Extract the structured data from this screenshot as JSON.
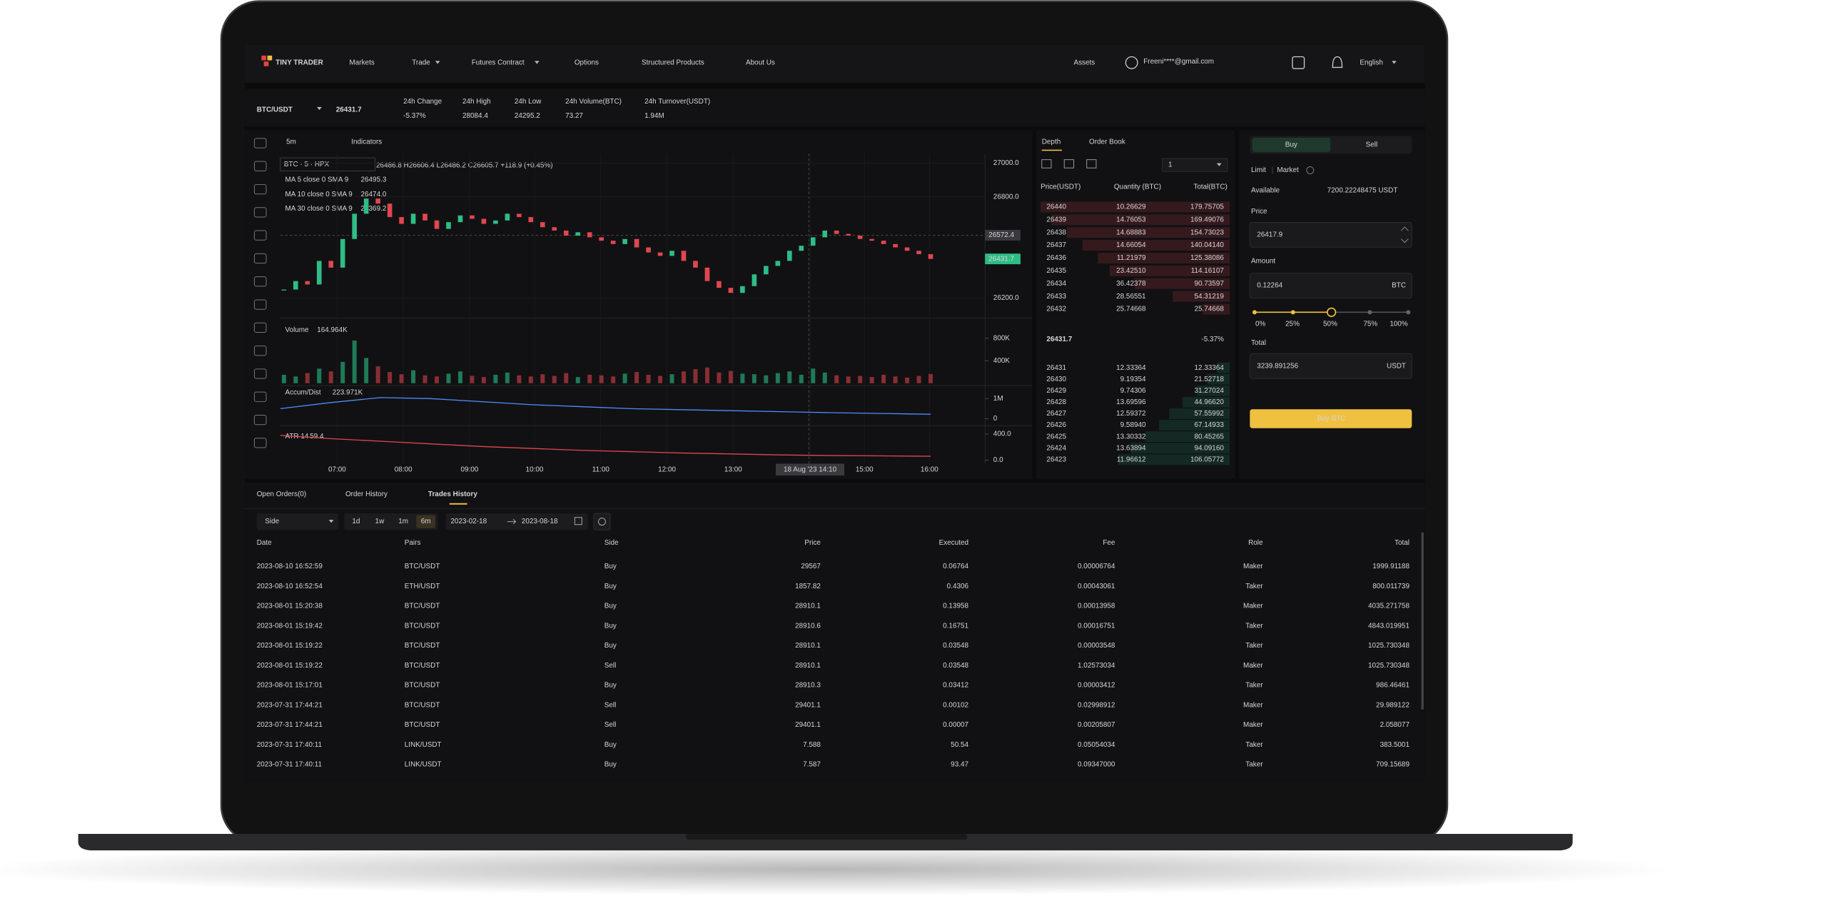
{
  "nav": {
    "logo": "TINY TRADER",
    "items": [
      "Markets",
      "Trade",
      "Futures Contract",
      "Options",
      "Structured Products",
      "About Us"
    ],
    "assets": "Assets",
    "email": "Freeni****@gmail.com",
    "language": "English"
  },
  "ticker": {
    "pair": "BTC/USDT",
    "price": "26431.7",
    "stats": [
      {
        "label": "24h Change",
        "value": "-5.37%"
      },
      {
        "label": "24h High",
        "value": "28084.4"
      },
      {
        "label": "24h Low",
        "value": "24295.2"
      },
      {
        "label": "24h Volume(BTC)",
        "value": "73.27"
      },
      {
        "label": "24h Turnover(USDT)",
        "value": "1.94M"
      }
    ]
  },
  "chart": {
    "interval": "5m",
    "indicators": "Indicators",
    "symbol": "BTC · 5 · HPX",
    "ohlc": "26486.8 H26606.4 L26486.2 C26605.7 +118.9 (+0.45%)",
    "ma": [
      {
        "label": "MA 5 close 0 SMA 9",
        "value": "26495.3"
      },
      {
        "label": "MA 10 close 0 SMA 9",
        "value": "26474.0"
      },
      {
        "label": "MA 30 close 0 SMA 9",
        "value": "26369.2"
      }
    ],
    "ylim": [
      26108,
      27035
    ],
    "yticks": [
      {
        "value": 27000,
        "label": "27000.0"
      },
      {
        "value": 26800,
        "label": "26800.0"
      },
      {
        "value": 26200,
        "label": "26200.0"
      }
    ],
    "markers": [
      {
        "value": 26572.4,
        "label": "26572.4"
      },
      {
        "value": 26431.7,
        "label": "26431.7"
      }
    ],
    "closes": [
      26250,
      26300,
      26280,
      26420,
      26380,
      26550,
      26700,
      26790,
      26760,
      26680,
      26640,
      26700,
      26660,
      26610,
      26650,
      26690,
      26670,
      26640,
      26660,
      26700,
      26680,
      26650,
      26620,
      26600,
      26570,
      26590,
      26560,
      26540,
      26520,
      26550,
      26500,
      26470,
      26450,
      26480,
      26420,
      26380,
      26300,
      26260,
      26230,
      26270,
      26340,
      26390,
      26420,
      26480,
      26510,
      26560,
      26600,
      26580,
      26570,
      26550,
      26540,
      26520,
      26500,
      26480,
      26460,
      26431.7
    ],
    "volume": {
      "label": "Volume",
      "value": "164.964K",
      "ylim": [
        0,
        1095000
      ],
      "yticks": [
        {
          "value": 800000,
          "label": "800K"
        },
        {
          "value": 400000,
          "label": "400K"
        }
      ],
      "values": [
        150000,
        120000,
        180000,
        260000,
        210000,
        380000,
        760000,
        450000,
        300000,
        200000,
        160000,
        230000,
        140000,
        120000,
        170000,
        210000,
        130000,
        110000,
        150000,
        190000,
        140000,
        120000,
        160000,
        130000,
        180000,
        110000,
        150000,
        140000,
        120000,
        170000,
        200000,
        150000,
        130000,
        160000,
        210000,
        250000,
        280000,
        190000,
        220000,
        170000,
        160000,
        140000,
        180000,
        210000,
        150000,
        260000,
        190000,
        140000,
        120000,
        130000,
        110000,
        150000,
        120000,
        100000,
        130000,
        164964
      ]
    },
    "accum": {
      "label": "Accum/Dist",
      "value": "223.971K",
      "ylim": [
        -235000,
        1529000
      ],
      "yticks": [
        {
          "value": 1000000,
          "label": "1M"
        },
        0
      ],
      "values": [
        500000,
        800000,
        1050000,
        1000000,
        850000,
        700000,
        600000,
        500000,
        450000,
        400000,
        350000,
        300000,
        260000,
        223971
      ]
    },
    "atr": {
      "label": "ATR 14",
      "value": "59.4",
      "ylim": [
        -54.5,
        490.9
      ],
      "yticks": [
        {
          "value": 400,
          "label": "400.0"
        },
        {
          "value": 0,
          "label": "0.0"
        }
      ],
      "values": [
        380,
        330,
        290,
        250,
        210,
        180,
        150,
        130,
        110,
        95,
        80,
        70,
        65,
        59.4
      ]
    },
    "times": [
      "07:00",
      "08:00",
      "09:00",
      "10:00",
      "11:00",
      "12:00",
      "13:00",
      "18 Aug '23 14:10",
      "15:00",
      "16:00"
    ]
  },
  "orderbook": {
    "tabs": [
      "Depth",
      "Order Book"
    ],
    "precision": "1",
    "columns": [
      "Price(USDT)",
      "Quantity (BTC)",
      "Total(BTC)"
    ],
    "asks": [
      [
        "26440",
        "10.26629",
        "179.75705"
      ],
      [
        "26439",
        "14.76053",
        "169.49076"
      ],
      [
        "26438",
        "14.68883",
        "154.73023"
      ],
      [
        "26437",
        "14.66054",
        "140.04140"
      ],
      [
        "26436",
        "11.21979",
        "125.38086"
      ],
      [
        "26435",
        "23.42510",
        "114.16107"
      ],
      [
        "26434",
        "36.42378",
        "90.73597"
      ],
      [
        "26433",
        "28.56551",
        "54.31219"
      ],
      [
        "26432",
        "25.74668",
        "25.74668"
      ]
    ],
    "mid_price": "26431.7",
    "mid_change": "-5.37%",
    "bids": [
      [
        "26431",
        "12.33364",
        "12.33364"
      ],
      [
        "26430",
        "9.19354",
        "21.52718"
      ],
      [
        "26429",
        "9.74306",
        "31.27024"
      ],
      [
        "26428",
        "13.69596",
        "44.96620"
      ],
      [
        "26427",
        "12.59372",
        "57.55992"
      ],
      [
        "26426",
        "9.58940",
        "67.14933"
      ],
      [
        "26425",
        "13.30332",
        "80.45265"
      ],
      [
        "26424",
        "13.63894",
        "94.09160"
      ],
      [
        "26423",
        "11.96612",
        "106.05772"
      ]
    ]
  },
  "trade_form": {
    "buy": "Buy",
    "sell": "Sell",
    "limit": "Limit",
    "market": "Market",
    "available_label": "Available",
    "available": "7200.22248475 USDT",
    "price_label": "Price",
    "price": "26417.9",
    "amount_label": "Amount",
    "amount": "0.12264",
    "amount_unit": "BTC",
    "percents": [
      "0%",
      "25%",
      "50%",
      "75%",
      "100%"
    ],
    "total_label": "Total",
    "total": "3239.891256",
    "total_unit": "USDT",
    "submit": "Buy BTC"
  },
  "history": {
    "tabs": [
      "Open Orders(0)",
      "Order History",
      "Trades History"
    ],
    "side_filter": "Side",
    "ranges": [
      "1d",
      "1w",
      "1m",
      "6m"
    ],
    "date_from": "2023-02-18",
    "date_to": "2023-08-18",
    "columns": [
      "Date",
      "Pairs",
      "Side",
      "Price",
      "Executed",
      "Fee",
      "Role",
      "Total"
    ],
    "rows": [
      [
        "2023-08-10 16:52:59",
        "BTC/USDT",
        "Buy",
        "29567",
        "0.06764",
        "0.00006764",
        "Maker",
        "1999.91188"
      ],
      [
        "2023-08-10 16:52:54",
        "ETH/USDT",
        "Buy",
        "1857.82",
        "0.4306",
        "0.00043061",
        "Taker",
        "800.011739"
      ],
      [
        "2023-08-01 15:20:38",
        "BTC/USDT",
        "Buy",
        "28910.1",
        "0.13958",
        "0.00013958",
        "Maker",
        "4035.271758"
      ],
      [
        "2023-08-01 15:19:42",
        "BTC/USDT",
        "Buy",
        "28910.6",
        "0.16751",
        "0.00016751",
        "Taker",
        "4843.019951"
      ],
      [
        "2023-08-01 15:19:22",
        "BTC/USDT",
        "Buy",
        "28910.1",
        "0.03548",
        "0.00003548",
        "Taker",
        "1025.730348"
      ],
      [
        "2023-08-01 15:19:22",
        "BTC/USDT",
        "Sell",
        "28910.1",
        "0.03548",
        "1.02573034",
        "Maker",
        "1025.730348"
      ],
      [
        "2023-08-01 15:17:01",
        "BTC/USDT",
        "Buy",
        "28910.3",
        "0.03412",
        "0.00003412",
        "Taker",
        "986.46461"
      ],
      [
        "2023-07-31 17:44:21",
        "BTC/USDT",
        "Sell",
        "29401.1",
        "0.00102",
        "0.02998912",
        "Maker",
        "29.989122"
      ],
      [
        "2023-07-31 17:44:21",
        "BTC/USDT",
        "Sell",
        "29401.1",
        "0.00007",
        "0.00205807",
        "Maker",
        "2.058077"
      ],
      [
        "2023-07-31 17:40:11",
        "LINK/USDT",
        "Buy",
        "7.588",
        "50.54",
        "0.05054034",
        "Taker",
        "383.5001"
      ],
      [
        "2023-07-31 17:40:11",
        "LINK/USDT",
        "Buy",
        "7.587",
        "93.47",
        "0.09347000",
        "Taker",
        "709.15689"
      ]
    ]
  }
}
